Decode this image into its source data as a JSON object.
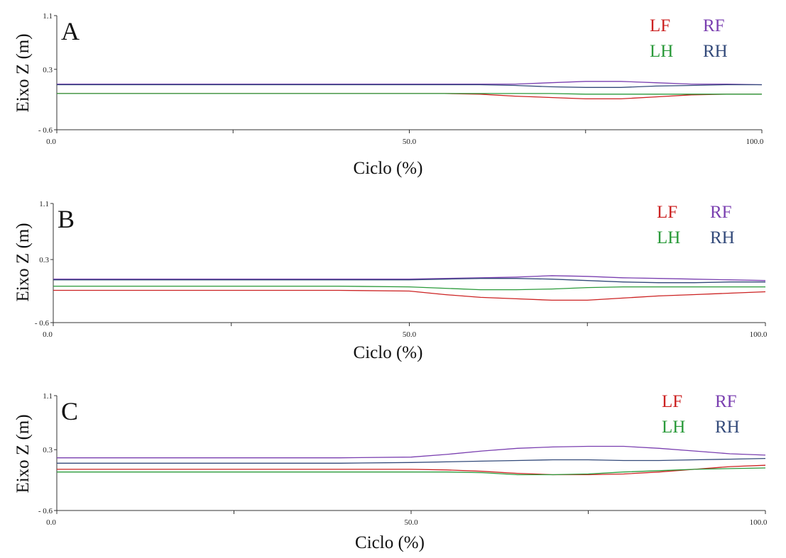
{
  "chart_data": [
    {
      "type": "line",
      "panel_label": "A",
      "xlabel": "Ciclo (%)",
      "ylabel": "Eixo Z (m)",
      "xlim": [
        0,
        100
      ],
      "ylim": [
        -0.6,
        1.1
      ],
      "x_ticks": [
        "0.0",
        "50.0",
        "100.0"
      ],
      "y_ticks": [
        "1.1",
        "0.3",
        "- 0.6"
      ],
      "legend_position": "top-right",
      "series": [
        {
          "name": "LF",
          "color": "#cc2222",
          "x": [
            0,
            10,
            20,
            30,
            40,
            50,
            55,
            60,
            65,
            70,
            75,
            80,
            85,
            90,
            95,
            100
          ],
          "y": [
            -0.06,
            -0.06,
            -0.06,
            -0.06,
            -0.06,
            -0.06,
            -0.06,
            -0.07,
            -0.1,
            -0.12,
            -0.14,
            -0.14,
            -0.11,
            -0.08,
            -0.07,
            -0.07
          ]
        },
        {
          "name": "RF",
          "color": "#7a3fb0",
          "x": [
            0,
            10,
            20,
            30,
            40,
            50,
            55,
            60,
            65,
            70,
            75,
            80,
            85,
            90,
            95,
            100
          ],
          "y": [
            0.08,
            0.08,
            0.08,
            0.08,
            0.08,
            0.08,
            0.08,
            0.08,
            0.08,
            0.1,
            0.12,
            0.12,
            0.1,
            0.08,
            0.08,
            0.07
          ]
        },
        {
          "name": "LH",
          "color": "#2a9a3a",
          "x": [
            0,
            10,
            20,
            30,
            40,
            50,
            55,
            60,
            65,
            70,
            75,
            80,
            85,
            90,
            95,
            100
          ],
          "y": [
            -0.06,
            -0.06,
            -0.06,
            -0.06,
            -0.06,
            -0.06,
            -0.06,
            -0.06,
            -0.06,
            -0.06,
            -0.07,
            -0.07,
            -0.07,
            -0.07,
            -0.07,
            -0.07
          ]
        },
        {
          "name": "RH",
          "color": "#334a7a",
          "x": [
            0,
            10,
            20,
            30,
            40,
            50,
            55,
            60,
            65,
            70,
            75,
            80,
            85,
            90,
            95,
            100
          ],
          "y": [
            0.07,
            0.07,
            0.07,
            0.07,
            0.07,
            0.07,
            0.07,
            0.07,
            0.06,
            0.04,
            0.03,
            0.03,
            0.05,
            0.06,
            0.07,
            0.07
          ]
        }
      ]
    },
    {
      "type": "line",
      "panel_label": "B",
      "xlabel": "Ciclo (%)",
      "ylabel": "Eixo Z (m)",
      "xlim": [
        0,
        100
      ],
      "ylim": [
        -0.6,
        1.1
      ],
      "x_ticks": [
        "0.0",
        "50.0",
        "100.0"
      ],
      "y_ticks": [
        "1.1",
        "0.3",
        "- 0.6"
      ],
      "legend_position": "top-right",
      "series": [
        {
          "name": "LF",
          "color": "#cc2222",
          "x": [
            0,
            10,
            20,
            30,
            40,
            50,
            55,
            60,
            65,
            70,
            75,
            80,
            85,
            90,
            95,
            100
          ],
          "y": [
            -0.14,
            -0.14,
            -0.14,
            -0.14,
            -0.14,
            -0.15,
            -0.2,
            -0.24,
            -0.26,
            -0.28,
            -0.28,
            -0.25,
            -0.22,
            -0.2,
            -0.18,
            -0.16
          ]
        },
        {
          "name": "RF",
          "color": "#7a3fb0",
          "x": [
            0,
            10,
            20,
            30,
            40,
            50,
            55,
            60,
            65,
            70,
            75,
            80,
            85,
            90,
            95,
            100
          ],
          "y": [
            0.02,
            0.02,
            0.02,
            0.02,
            0.02,
            0.02,
            0.03,
            0.04,
            0.05,
            0.07,
            0.06,
            0.04,
            0.03,
            0.02,
            0.01,
            0.0
          ]
        },
        {
          "name": "LH",
          "color": "#2a9a3a",
          "x": [
            0,
            10,
            20,
            30,
            40,
            50,
            55,
            60,
            65,
            70,
            75,
            80,
            85,
            90,
            95,
            100
          ],
          "y": [
            -0.08,
            -0.08,
            -0.08,
            -0.08,
            -0.08,
            -0.09,
            -0.11,
            -0.13,
            -0.13,
            -0.12,
            -0.1,
            -0.09,
            -0.09,
            -0.09,
            -0.09,
            -0.09
          ]
        },
        {
          "name": "RH",
          "color": "#334a7a",
          "x": [
            0,
            10,
            20,
            30,
            40,
            50,
            55,
            60,
            65,
            70,
            75,
            80,
            85,
            90,
            95,
            100
          ],
          "y": [
            0.01,
            0.01,
            0.01,
            0.01,
            0.01,
            0.01,
            0.02,
            0.03,
            0.03,
            0.02,
            0.0,
            -0.02,
            -0.03,
            -0.03,
            -0.02,
            -0.02
          ]
        }
      ]
    },
    {
      "type": "line",
      "panel_label": "C",
      "xlabel": "Ciclo (%)",
      "ylabel": "Eixo Z (m)",
      "xlim": [
        0,
        100
      ],
      "ylim": [
        -0.6,
        1.1
      ],
      "x_ticks": [
        "0.0",
        "50.0",
        "100.0"
      ],
      "y_ticks": [
        "1.1",
        "0.3",
        "- 0.6"
      ],
      "legend_position": "top-right",
      "series": [
        {
          "name": "LF",
          "color": "#cc2222",
          "x": [
            0,
            10,
            20,
            30,
            40,
            50,
            55,
            60,
            65,
            70,
            75,
            80,
            85,
            90,
            95,
            100
          ],
          "y": [
            0.01,
            0.01,
            0.01,
            0.01,
            0.01,
            0.01,
            0.0,
            -0.02,
            -0.05,
            -0.07,
            -0.07,
            -0.06,
            -0.03,
            0.01,
            0.05,
            0.07
          ]
        },
        {
          "name": "RF",
          "color": "#7a3fb0",
          "x": [
            0,
            10,
            20,
            30,
            40,
            50,
            55,
            60,
            65,
            70,
            75,
            80,
            85,
            90,
            95,
            100
          ],
          "y": [
            0.18,
            0.18,
            0.18,
            0.18,
            0.18,
            0.19,
            0.23,
            0.28,
            0.32,
            0.34,
            0.35,
            0.35,
            0.32,
            0.28,
            0.24,
            0.22
          ]
        },
        {
          "name": "LH",
          "color": "#2a9a3a",
          "x": [
            0,
            10,
            20,
            30,
            40,
            50,
            55,
            60,
            65,
            70,
            75,
            80,
            85,
            90,
            95,
            100
          ],
          "y": [
            -0.03,
            -0.03,
            -0.03,
            -0.03,
            -0.03,
            -0.03,
            -0.03,
            -0.04,
            -0.07,
            -0.07,
            -0.06,
            -0.03,
            -0.01,
            0.01,
            0.02,
            0.03
          ]
        },
        {
          "name": "RH",
          "color": "#334a7a",
          "x": [
            0,
            10,
            20,
            30,
            40,
            50,
            55,
            60,
            65,
            70,
            75,
            80,
            85,
            90,
            95,
            100
          ],
          "y": [
            0.1,
            0.1,
            0.1,
            0.1,
            0.1,
            0.11,
            0.12,
            0.13,
            0.14,
            0.15,
            0.15,
            0.14,
            0.14,
            0.15,
            0.16,
            0.17
          ]
        }
      ]
    }
  ]
}
